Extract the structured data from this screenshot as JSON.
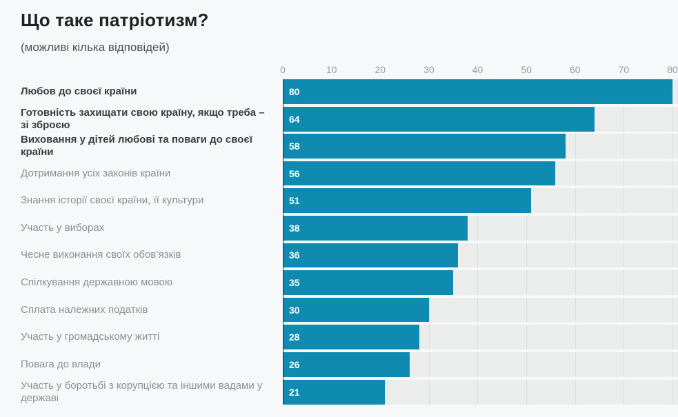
{
  "page": {
    "background_color": "#f7f8f9"
  },
  "chart_data": {
    "type": "bar",
    "orientation": "horizontal",
    "title": "Що таке патріотизм?",
    "subtitle": "(можливі кілька відповідей)",
    "categories": [
      "Любов до своєї країни",
      "Готовність захищати свою країну, якщо треба – зі зброєю",
      "Виховання у дітей любові та поваги до своєї країни",
      "Дотримання усіх законів країни",
      "Знання історії своєї країни, її культури",
      "Участь у виборах",
      "Чесне виконання своїх обов’язків",
      "Спілкування державною мовою",
      "Сплата належних податків",
      "Участь у громадському житті",
      "Повага до влади",
      "Участь у боротьбі з корупцією та іншими вадами у державі"
    ],
    "values": [
      80,
      64,
      58,
      56,
      51,
      38,
      36,
      35,
      30,
      28,
      26,
      21
    ],
    "emphasized": [
      true,
      true,
      true,
      false,
      false,
      false,
      false,
      false,
      false,
      false,
      false,
      false
    ],
    "value_labels_position": "inside-start",
    "xlabel": "",
    "ylabel": "",
    "xlim": [
      0,
      80
    ],
    "x_ticks": [
      0,
      10,
      20,
      30,
      40,
      50,
      60,
      70,
      80
    ],
    "grid": true,
    "legend": false,
    "colors": {
      "bar": "#0f8bb2",
      "track": "#ebecec",
      "gridline": "#dcdddd",
      "tick_label": "#9b9b9b",
      "title": "#212121",
      "subtitle": "#4f4f4f",
      "label_emphasized": "#3d3d3d",
      "label_regular": "#8e8e8e",
      "value_label": "#ffffff"
    }
  }
}
